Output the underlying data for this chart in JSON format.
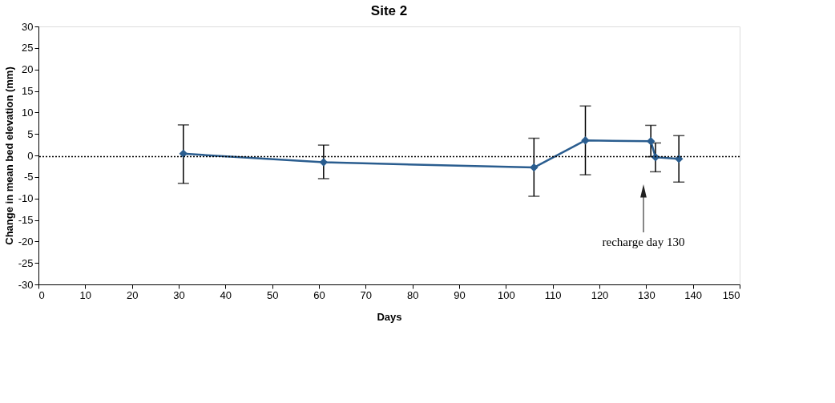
{
  "chart_data": {
    "type": "line",
    "title": "Site 2",
    "xlabel": "Days",
    "ylabel": "Change in mean bed elevation (mm)",
    "x": [
      31,
      61,
      106,
      117,
      131,
      132,
      137
    ],
    "series": [
      {
        "color": "#2a5d8f",
        "values": [
          0.4,
          -1.6,
          -2.8,
          3.5,
          3.3,
          -0.4,
          -0.8
        ],
        "errors": [
          [
            -6.5,
            7.1
          ],
          [
            -5.4,
            2.4
          ],
          [
            -9.5,
            4.0
          ],
          [
            -4.5,
            11.5
          ],
          [
            -0.3,
            7.0
          ],
          [
            -3.8,
            2.9
          ],
          [
            -6.2,
            4.6
          ]
        ]
      }
    ],
    "xlim": [
      0,
      150
    ],
    "xticks": [
      0,
      10,
      20,
      30,
      40,
      50,
      60,
      70,
      80,
      90,
      100,
      110,
      120,
      130,
      140,
      150
    ],
    "ylim": [
      -30,
      30
    ],
    "yticks": [
      -30,
      -25,
      -20,
      -15,
      -10,
      -5,
      0,
      5,
      10,
      15,
      20,
      25,
      30
    ],
    "ref_lines": [
      {
        "axis": "y",
        "value": -0.3,
        "color": "#000000",
        "line_style": "dotted"
      }
    ],
    "annotations": [
      "recharge day 130"
    ],
    "marker": "diamond",
    "line_style": "solid",
    "grid": false
  }
}
